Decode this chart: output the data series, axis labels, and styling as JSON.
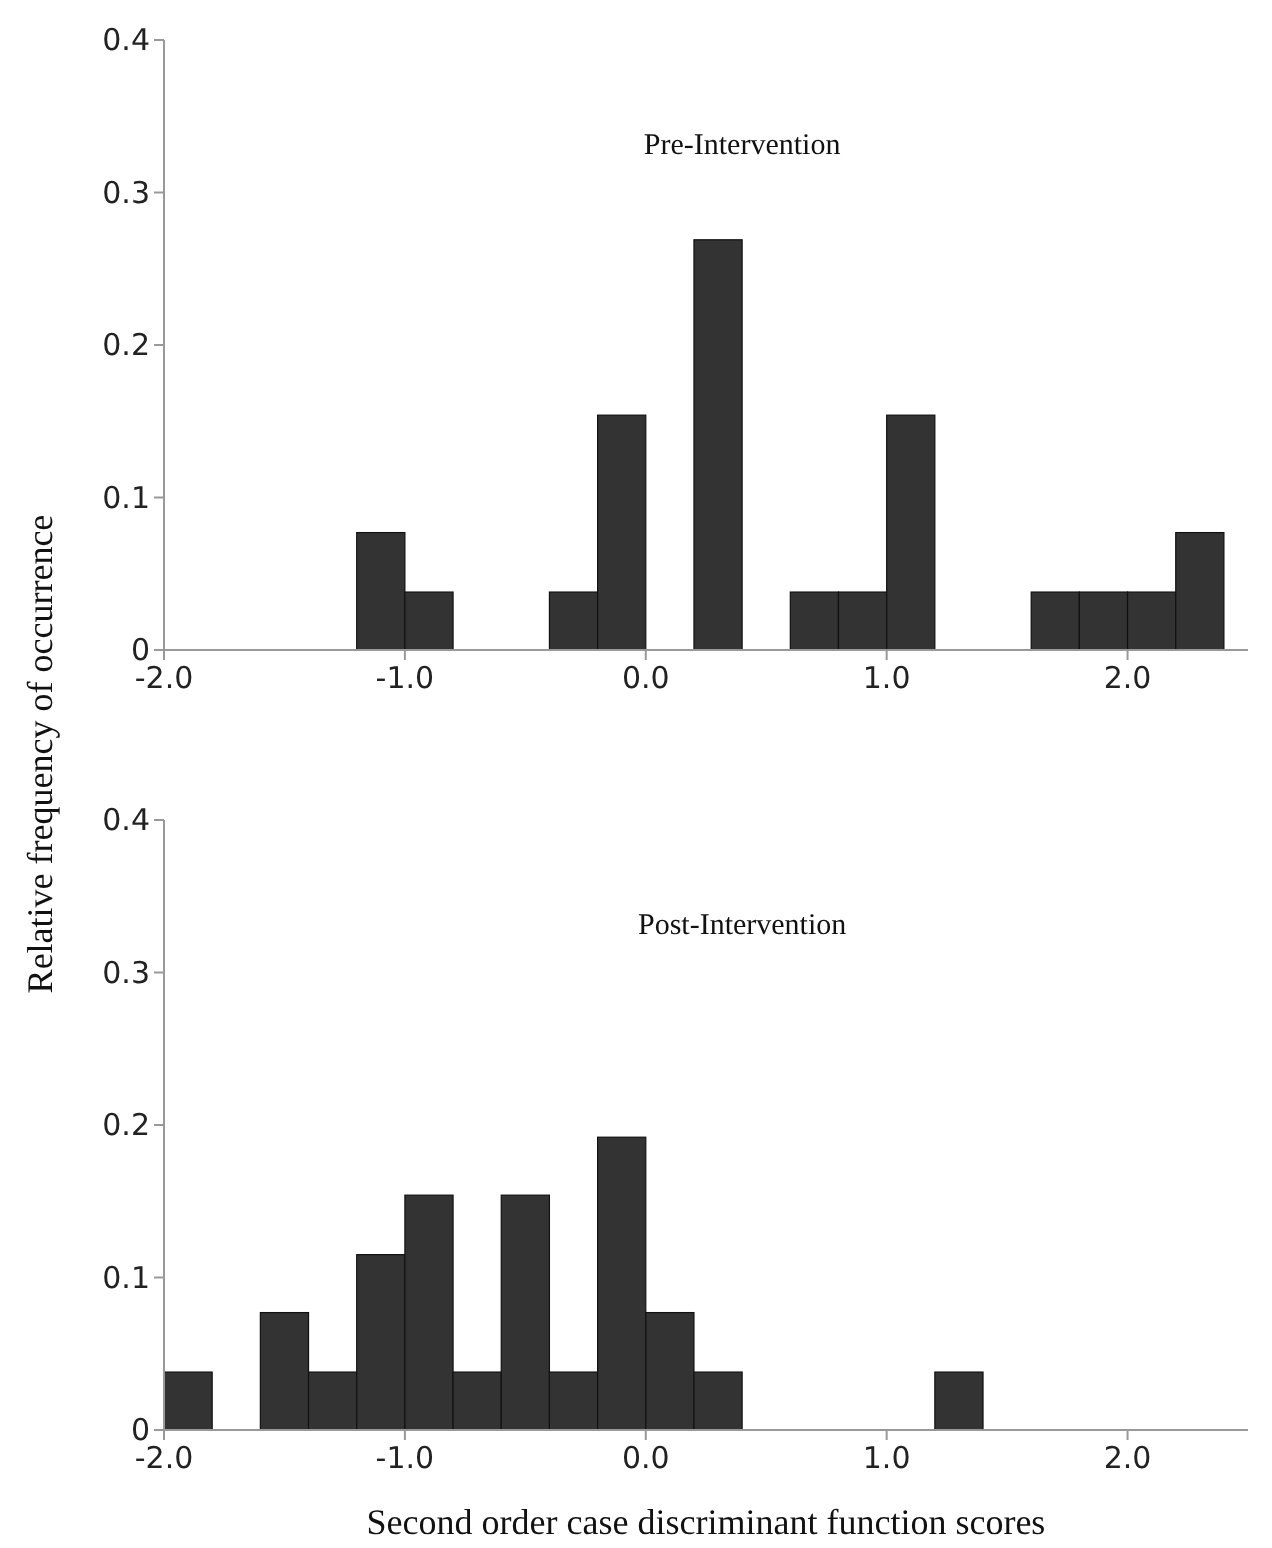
{
  "chart_data": [
    {
      "type": "histogram",
      "title": "Pre-Intervention",
      "ylabel": "Relative frequency of occurrence",
      "bins": [
        -2.0,
        -1.8,
        -1.6,
        -1.4,
        -1.2,
        -1.0,
        -0.8,
        -0.6,
        -0.4,
        -0.2,
        0.0,
        0.2,
        0.4,
        0.6,
        0.8,
        1.0,
        1.2,
        1.4,
        1.6,
        1.8,
        2.0,
        2.2,
        2.4
      ],
      "values": [
        0,
        0,
        0,
        0,
        0.077,
        0.038,
        0,
        0,
        0.038,
        0.154,
        0,
        0.269,
        0,
        0.038,
        0.038,
        0.154,
        0,
        0,
        0.038,
        0.038,
        0.038,
        0.077
      ],
      "color": "#333333",
      "xlim": [
        -2.0,
        2.5
      ],
      "ylim": [
        0,
        0.4
      ],
      "xticks": [
        {
          "value": -2,
          "label": "-2.0"
        },
        {
          "value": -1,
          "label": "-1.0"
        },
        {
          "value": 0,
          "label": "0.0"
        },
        {
          "value": 1,
          "label": "1.0"
        },
        {
          "value": 2,
          "label": "2.0"
        }
      ],
      "yticks": [
        0,
        0.1,
        0.2,
        0.3,
        0.4
      ],
      "grid": false
    },
    {
      "type": "histogram",
      "title": "Post-Intervention",
      "xlabel": "Second order case discriminant function scores",
      "bins": [
        -2.0,
        -1.8,
        -1.6,
        -1.4,
        -1.2,
        -1.0,
        -0.8,
        -0.6,
        -0.4,
        -0.2,
        0.0,
        0.2,
        0.4,
        0.6,
        0.8,
        1.0,
        1.2,
        1.4,
        1.6,
        1.8,
        2.0,
        2.2,
        2.4
      ],
      "values": [
        0.038,
        0,
        0.077,
        0.038,
        0.115,
        0.154,
        0.038,
        0.154,
        0.038,
        0.192,
        0.077,
        0.038,
        0,
        0,
        0,
        0,
        0.038,
        0,
        0,
        0,
        0,
        0
      ],
      "color": "#333333",
      "xlim": [
        -2.0,
        2.5
      ],
      "ylim": [
        0,
        0.4
      ],
      "xticks": [
        {
          "value": -2,
          "label": "-2.0"
        },
        {
          "value": -1,
          "label": "-1.0"
        },
        {
          "value": 0,
          "label": "0.0"
        },
        {
          "value": 1,
          "label": "1.0"
        },
        {
          "value": 2,
          "label": "2.0"
        }
      ],
      "yticks": [
        0,
        0.1,
        0.2,
        0.3,
        0.4
      ],
      "grid": false
    }
  ]
}
